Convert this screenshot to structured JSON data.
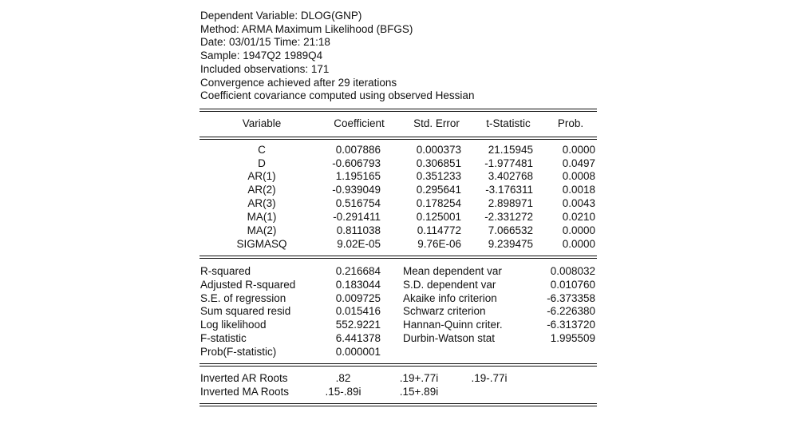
{
  "header": {
    "lines": [
      "Dependent Variable: DLOG(GNP)",
      "Method: ARMA Maximum Likelihood (BFGS)",
      "Date: 03/01/15   Time: 21:18",
      "Sample: 1947Q2 1989Q4",
      "Included observations: 171",
      "Convergence achieved after 29 iterations",
      "Coefficient covariance computed using observed Hessian"
    ]
  },
  "coef_table": {
    "columns": [
      "Variable",
      "Coefficient",
      "Std. Error",
      "t-Statistic",
      "Prob."
    ],
    "rows": [
      [
        "C",
        "0.007886",
        "0.000373",
        "21.15945",
        "0.0000"
      ],
      [
        "D",
        "-0.606793",
        "0.306851",
        "-1.977481",
        "0.0497"
      ],
      [
        "AR(1)",
        "1.195165",
        "0.351233",
        "3.402768",
        "0.0008"
      ],
      [
        "AR(2)",
        "-0.939049",
        "0.295641",
        "-3.176311",
        "0.0018"
      ],
      [
        "AR(3)",
        "0.516754",
        "0.178254",
        "2.898971",
        "0.0043"
      ],
      [
        "MA(1)",
        "-0.291411",
        "0.125001",
        "-2.331272",
        "0.0210"
      ],
      [
        "MA(2)",
        "0.811038",
        "0.114772",
        "7.066532",
        "0.0000"
      ],
      [
        "SIGMASQ",
        "9.02E-05",
        "9.76E-06",
        "9.239475",
        "0.0000"
      ]
    ]
  },
  "stats": {
    "rows": [
      [
        "R-squared",
        "0.216684",
        "Mean dependent var",
        "0.008032"
      ],
      [
        "Adjusted R-squared",
        "0.183044",
        "S.D. dependent var",
        "0.010760"
      ],
      [
        "S.E. of regression",
        "0.009725",
        "Akaike info criterion",
        "-6.373358"
      ],
      [
        "Sum squared resid",
        "0.015416",
        "Schwarz criterion",
        "-6.226380"
      ],
      [
        "Log likelihood",
        "552.9221",
        "Hannan-Quinn criter.",
        "-6.313720"
      ],
      [
        "F-statistic",
        "6.441378",
        "Durbin-Watson stat",
        "1.995509"
      ],
      [
        "Prob(F-statistic)",
        "0.000001",
        "",
        ""
      ]
    ]
  },
  "roots": {
    "ar_label": "Inverted AR Roots",
    "ar_values": [
      ".82",
      ".19+.77i",
      ".19-.77i"
    ],
    "ma_label": "Inverted MA Roots",
    "ma_values": [
      ".15-.89i",
      ".15+.89i"
    ]
  }
}
